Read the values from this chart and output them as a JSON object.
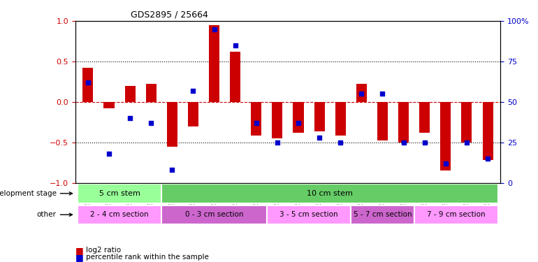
{
  "title": "GDS2895 / 25664",
  "samples": [
    "GSM35570",
    "GSM35571",
    "GSM35721",
    "GSM35725",
    "GSM35565",
    "GSM35567",
    "GSM35568",
    "GSM35569",
    "GSM35726",
    "GSM35727",
    "GSM35728",
    "GSM35729",
    "GSM35978",
    "GSM36004",
    "GSM36011",
    "GSM36012",
    "GSM36013",
    "GSM36014",
    "GSM36015",
    "GSM36016"
  ],
  "log2_ratio": [
    0.42,
    -0.08,
    0.2,
    0.22,
    -0.55,
    -0.3,
    0.95,
    0.62,
    -0.42,
    -0.45,
    -0.38,
    -0.36,
    -0.42,
    0.22,
    -0.48,
    -0.5,
    -0.38,
    -0.85,
    -0.5,
    -0.72
  ],
  "percentile": [
    62,
    18,
    40,
    37,
    8,
    57,
    95,
    85,
    37,
    25,
    37,
    28,
    25,
    55,
    55,
    25,
    25,
    12,
    25,
    15
  ],
  "bar_color": "#cc0000",
  "dot_color": "#0000cc",
  "ylim_left": [
    -1,
    1
  ],
  "ylim_right": [
    0,
    100
  ],
  "yticks_left": [
    -1,
    -0.5,
    0,
    0.5,
    1
  ],
  "yticks_right": [
    0,
    25,
    50,
    75,
    100
  ],
  "hline_color": "#cc0000",
  "dotted_color": "black",
  "dev_stage_groups": [
    {
      "label": "5 cm stem",
      "start": 0,
      "end": 3,
      "color": "#99ff99"
    },
    {
      "label": "10 cm stem",
      "start": 4,
      "end": 19,
      "color": "#66cc66"
    }
  ],
  "other_groups": [
    {
      "label": "2 - 4 cm section",
      "start": 0,
      "end": 3,
      "color": "#ff99ff"
    },
    {
      "label": "0 - 3 cm section",
      "start": 4,
      "end": 8,
      "color": "#cc66cc"
    },
    {
      "label": "3 - 5 cm section",
      "start": 9,
      "end": 12,
      "color": "#ff99ff"
    },
    {
      "label": "5 - 7 cm section",
      "start": 13,
      "end": 15,
      "color": "#cc66cc"
    },
    {
      "label": "7 - 9 cm section",
      "start": 16,
      "end": 19,
      "color": "#ff99ff"
    }
  ],
  "legend_red": "log2 ratio",
  "legend_blue": "percentile rank within the sample",
  "dev_stage_label": "development stage",
  "other_label": "other",
  "bar_width": 0.5,
  "dot_size": 20,
  "background_color": "#ffffff",
  "tick_label_color": "#555555",
  "right_axis_color": "#0000cc",
  "left_axis_color": "#cc0000"
}
